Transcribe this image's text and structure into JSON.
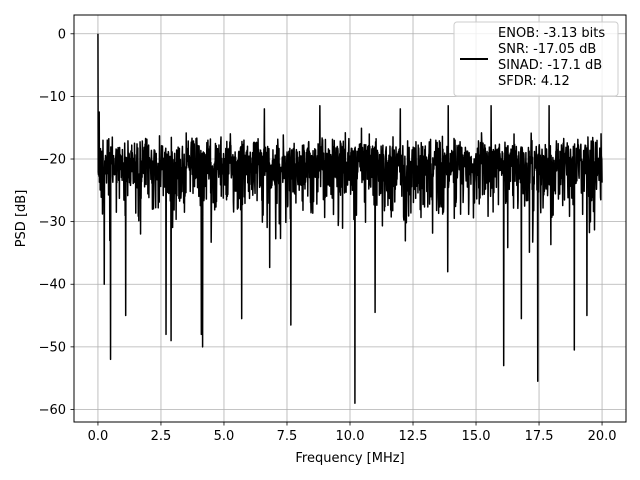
{
  "chart_data": {
    "type": "line",
    "title": "",
    "xlabel": "Frequency [MHz]",
    "ylabel": "PSD [dB]",
    "xlim": [
      -0.95,
      20.95
    ],
    "ylim": [
      -62,
      3
    ],
    "x_ticks": [
      0.0,
      2.5,
      5.0,
      7.5,
      10.0,
      12.5,
      15.0,
      17.5,
      20.0
    ],
    "x_tick_labels": [
      "0.0",
      "2.5",
      "5.0",
      "7.5",
      "10.0",
      "12.5",
      "15.0",
      "17.5",
      "20.0"
    ],
    "y_ticks": [
      0,
      -10,
      -20,
      -30,
      -40,
      -50,
      -60
    ],
    "y_tick_labels": [
      "0",
      "−10",
      "−20",
      "−30",
      "−40",
      "−50",
      "−60"
    ],
    "grid": true,
    "legend_position": "top-right",
    "legend_entries": [
      "ENOB: -3.13 bits",
      "SNR: -17.05 dB",
      "SINAD: -17.1 dB",
      "SFDR: 4.12"
    ],
    "series": [
      {
        "color": "#000000",
        "x_range": [
          0,
          20
        ],
        "points": 2000,
        "envelope": {
          "typical_low": -30,
          "typical_high": -13,
          "median": -21
        },
        "peaks": [
          {
            "x": 0.0,
            "y": 0.0
          },
          {
            "x": 0.05,
            "y": -12.5
          },
          {
            "x": 0.12,
            "y": -20
          },
          {
            "x": 0.2,
            "y": -17
          },
          {
            "x": 0.25,
            "y": -40
          },
          {
            "x": 0.5,
            "y": -52
          },
          {
            "x": 1.1,
            "y": -45
          },
          {
            "x": 2.7,
            "y": -48
          },
          {
            "x": 2.9,
            "y": -49
          },
          {
            "x": 4.1,
            "y": -48
          },
          {
            "x": 4.15,
            "y": -50
          },
          {
            "x": 5.7,
            "y": -45.5
          },
          {
            "x": 7.65,
            "y": -46.5
          },
          {
            "x": 10.2,
            "y": -59
          },
          {
            "x": 11.0,
            "y": -44.5
          },
          {
            "x": 16.1,
            "y": -53
          },
          {
            "x": 16.8,
            "y": -45.5
          },
          {
            "x": 17.45,
            "y": -55.5
          },
          {
            "x": 18.9,
            "y": -50.5
          },
          {
            "x": 19.4,
            "y": -45
          },
          {
            "x": 6.6,
            "y": -12
          },
          {
            "x": 8.8,
            "y": -11.5
          },
          {
            "x": 12.0,
            "y": -12
          },
          {
            "x": 13.9,
            "y": -11.5
          },
          {
            "x": 15.6,
            "y": -11.5
          },
          {
            "x": 17.9,
            "y": -11.5
          }
        ]
      }
    ]
  }
}
